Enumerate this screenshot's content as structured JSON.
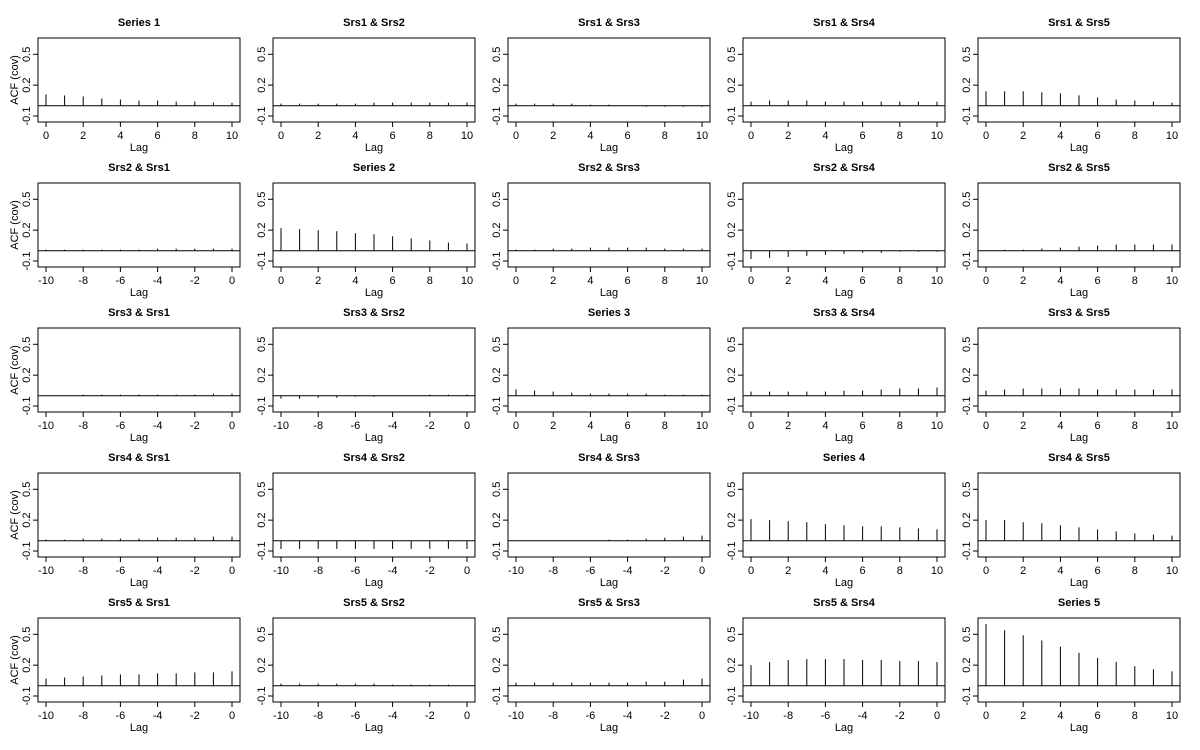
{
  "ylabel": "ACF (cov)",
  "xlabel": "Lag",
  "colors": {
    "axis": "#000000",
    "bars": "#000000",
    "background": "#ffffff"
  },
  "chart_data": [
    {
      "type": "bar",
      "title": "Series 1",
      "xlabel": "Lag",
      "ylabel": "ACF (cov)",
      "xlim": [
        0,
        10
      ],
      "ylim": [
        -0.1,
        0.6
      ],
      "yticks": [
        "-0.1",
        "0.2",
        "0.5"
      ],
      "xticks": [
        "0",
        "2",
        "4",
        "6",
        "8",
        "10"
      ],
      "x": [
        0,
        1,
        2,
        3,
        4,
        5,
        6,
        7,
        8,
        9,
        10
      ],
      "values": [
        0.11,
        0.1,
        0.09,
        0.07,
        0.06,
        0.05,
        0.05,
        0.04,
        0.04,
        0.03,
        0.03
      ]
    },
    {
      "type": "bar",
      "title": "Srs1 & Srs2",
      "xlabel": "Lag",
      "xlim": [
        0,
        10
      ],
      "ylim": [
        -0.1,
        0.6
      ],
      "yticks": [
        "-0.1",
        "0.2",
        "0.5"
      ],
      "xticks": [
        "0",
        "2",
        "4",
        "6",
        "8",
        "10"
      ],
      "x": [
        0,
        1,
        2,
        3,
        4,
        5,
        6,
        7,
        8,
        9,
        10
      ],
      "values": [
        0.02,
        0.02,
        0.02,
        0.02,
        0.02,
        0.03,
        0.03,
        0.03,
        0.03,
        0.03,
        0.03
      ]
    },
    {
      "type": "bar",
      "title": "Srs1 & Srs3",
      "xlabel": "Lag",
      "xlim": [
        0,
        10
      ],
      "ylim": [
        -0.1,
        0.6
      ],
      "yticks": [
        "-0.1",
        "0.2",
        "0.5"
      ],
      "xticks": [
        "0",
        "2",
        "4",
        "6",
        "8",
        "10"
      ],
      "x": [
        0,
        1,
        2,
        3,
        4,
        5,
        6,
        7,
        8,
        9,
        10
      ],
      "values": [
        0.02,
        0.02,
        0.02,
        0.02,
        0.01,
        0.01,
        0.0,
        -0.01,
        -0.01,
        -0.01,
        -0.01
      ]
    },
    {
      "type": "bar",
      "title": "Srs1 & Srs4",
      "xlabel": "Lag",
      "xlim": [
        0,
        10
      ],
      "ylim": [
        -0.1,
        0.6
      ],
      "yticks": [
        "-0.1",
        "0.2",
        "0.5"
      ],
      "xticks": [
        "0",
        "2",
        "4",
        "6",
        "8",
        "10"
      ],
      "x": [
        0,
        1,
        2,
        3,
        4,
        5,
        6,
        7,
        8,
        9,
        10
      ],
      "values": [
        0.04,
        0.05,
        0.05,
        0.05,
        0.04,
        0.04,
        0.04,
        0.04,
        0.04,
        0.04,
        0.04
      ]
    },
    {
      "type": "bar",
      "title": "Srs1 & Srs5",
      "xlabel": "Lag",
      "xlim": [
        0,
        10
      ],
      "ylim": [
        -0.1,
        0.6
      ],
      "yticks": [
        "-0.1",
        "0.2",
        "0.5"
      ],
      "xticks": [
        "0",
        "2",
        "4",
        "6",
        "8",
        "10"
      ],
      "x": [
        0,
        1,
        2,
        3,
        4,
        5,
        6,
        7,
        8,
        9,
        10
      ],
      "values": [
        0.14,
        0.14,
        0.14,
        0.13,
        0.12,
        0.1,
        0.08,
        0.06,
        0.05,
        0.04,
        0.03
      ]
    },
    {
      "type": "bar",
      "title": "Srs2 & Srs1",
      "xlabel": "Lag",
      "ylabel": "ACF (cov)",
      "xlim": [
        -10,
        0
      ],
      "ylim": [
        -0.1,
        0.6
      ],
      "yticks": [
        "-0.1",
        "0.2",
        "0.5"
      ],
      "xticks": [
        "-10",
        "-8",
        "-6",
        "-4",
        "-2",
        "0"
      ],
      "x": [
        -10,
        -9,
        -8,
        -7,
        -6,
        -5,
        -4,
        -3,
        -2,
        -1,
        0
      ],
      "values": [
        0.01,
        0.01,
        0.01,
        0.01,
        0.01,
        0.01,
        0.02,
        0.02,
        0.02,
        0.02,
        0.02
      ]
    },
    {
      "type": "bar",
      "title": "Series 2",
      "xlabel": "Lag",
      "xlim": [
        0,
        10
      ],
      "ylim": [
        -0.1,
        0.6
      ],
      "yticks": [
        "-0.1",
        "0.2",
        "0.5"
      ],
      "xticks": [
        "0",
        "2",
        "4",
        "6",
        "8",
        "10"
      ],
      "x": [
        0,
        1,
        2,
        3,
        4,
        5,
        6,
        7,
        8,
        9,
        10
      ],
      "values": [
        0.22,
        0.21,
        0.2,
        0.19,
        0.17,
        0.16,
        0.14,
        0.12,
        0.1,
        0.08,
        0.07
      ]
    },
    {
      "type": "bar",
      "title": "Srs2 & Srs3",
      "xlabel": "Lag",
      "xlim": [
        0,
        10
      ],
      "ylim": [
        -0.1,
        0.6
      ],
      "yticks": [
        "-0.1",
        "0.2",
        "0.5"
      ],
      "xticks": [
        "0",
        "2",
        "4",
        "6",
        "8",
        "10"
      ],
      "x": [
        0,
        1,
        2,
        3,
        4,
        5,
        6,
        7,
        8,
        9,
        10
      ],
      "values": [
        0.01,
        0.01,
        0.02,
        0.02,
        0.03,
        0.03,
        0.03,
        0.03,
        0.02,
        0.02,
        0.02
      ]
    },
    {
      "type": "bar",
      "title": "Srs2 & Srs4",
      "xlabel": "Lag",
      "xlim": [
        0,
        10
      ],
      "ylim": [
        -0.1,
        0.6
      ],
      "yticks": [
        "-0.1",
        "0.2",
        "0.5"
      ],
      "xticks": [
        "0",
        "2",
        "4",
        "6",
        "8",
        "10"
      ],
      "x": [
        0,
        1,
        2,
        3,
        4,
        5,
        6,
        7,
        8,
        9,
        10
      ],
      "values": [
        -0.08,
        -0.07,
        -0.06,
        -0.05,
        -0.04,
        -0.03,
        -0.02,
        -0.02,
        -0.01,
        -0.01,
        -0.01
      ]
    },
    {
      "type": "bar",
      "title": "Srs2 & Srs5",
      "xlabel": "Lag",
      "xlim": [
        0,
        10
      ],
      "ylim": [
        -0.1,
        0.6
      ],
      "yticks": [
        "-0.1",
        "0.2",
        "0.5"
      ],
      "xticks": [
        "0",
        "2",
        "4",
        "6",
        "8",
        "10"
      ],
      "x": [
        0,
        1,
        2,
        3,
        4,
        5,
        6,
        7,
        8,
        9,
        10
      ],
      "values": [
        0.0,
        0.01,
        0.01,
        0.02,
        0.03,
        0.04,
        0.05,
        0.06,
        0.06,
        0.06,
        0.06
      ]
    },
    {
      "type": "bar",
      "title": "Srs3 & Srs1",
      "xlabel": "Lag",
      "ylabel": "ACF (cov)",
      "xlim": [
        -10,
        0
      ],
      "ylim": [
        -0.1,
        0.6
      ],
      "yticks": [
        "-0.1",
        "0.2",
        "0.5"
      ],
      "xticks": [
        "-10",
        "-8",
        "-6",
        "-4",
        "-2",
        "0"
      ],
      "x": [
        -10,
        -9,
        -8,
        -7,
        -6,
        -5,
        -4,
        -3,
        -2,
        -1,
        0
      ],
      "values": [
        0.0,
        0.0,
        0.01,
        0.01,
        0.01,
        0.01,
        0.01,
        0.01,
        0.01,
        0.02,
        0.02
      ]
    },
    {
      "type": "bar",
      "title": "Srs3 & Srs2",
      "xlabel": "Lag",
      "xlim": [
        -10,
        0
      ],
      "ylim": [
        -0.1,
        0.6
      ],
      "yticks": [
        "-0.1",
        "0.2",
        "0.5"
      ],
      "xticks": [
        "-10",
        "-8",
        "-6",
        "-4",
        "-2",
        "0"
      ],
      "x": [
        -10,
        -9,
        -8,
        -7,
        -6,
        -5,
        -4,
        -3,
        -2,
        -1,
        0
      ],
      "values": [
        -0.03,
        -0.03,
        -0.02,
        -0.02,
        -0.01,
        -0.01,
        0.0,
        0.0,
        0.01,
        0.01,
        0.01
      ]
    },
    {
      "type": "bar",
      "title": "Series 3",
      "xlabel": "Lag",
      "xlim": [
        0,
        10
      ],
      "ylim": [
        -0.1,
        0.6
      ],
      "yticks": [
        "-0.1",
        "0.2",
        "0.5"
      ],
      "xticks": [
        "0",
        "2",
        "4",
        "6",
        "8",
        "10"
      ],
      "x": [
        0,
        1,
        2,
        3,
        4,
        5,
        6,
        7,
        8,
        9,
        10
      ],
      "values": [
        0.06,
        0.05,
        0.04,
        0.03,
        0.02,
        0.02,
        0.02,
        0.02,
        0.01,
        0.01,
        0.01
      ]
    },
    {
      "type": "bar",
      "title": "Srs3 & Srs4",
      "xlabel": "Lag",
      "xlim": [
        0,
        10
      ],
      "ylim": [
        -0.1,
        0.6
      ],
      "yticks": [
        "-0.1",
        "0.2",
        "0.5"
      ],
      "xticks": [
        "0",
        "2",
        "4",
        "6",
        "8",
        "10"
      ],
      "x": [
        0,
        1,
        2,
        3,
        4,
        5,
        6,
        7,
        8,
        9,
        10
      ],
      "values": [
        0.04,
        0.04,
        0.04,
        0.04,
        0.04,
        0.05,
        0.05,
        0.06,
        0.07,
        0.07,
        0.08
      ]
    },
    {
      "type": "bar",
      "title": "Srs3 & Srs5",
      "xlabel": "Lag",
      "xlim": [
        0,
        10
      ],
      "ylim": [
        -0.1,
        0.6
      ],
      "yticks": [
        "-0.1",
        "0.2",
        "0.5"
      ],
      "xticks": [
        "0",
        "2",
        "4",
        "6",
        "8",
        "10"
      ],
      "x": [
        0,
        1,
        2,
        3,
        4,
        5,
        6,
        7,
        8,
        9,
        10
      ],
      "values": [
        0.05,
        0.06,
        0.07,
        0.07,
        0.07,
        0.07,
        0.06,
        0.06,
        0.06,
        0.06,
        0.06
      ]
    },
    {
      "type": "bar",
      "title": "Srs4 & Srs1",
      "xlabel": "Lag",
      "ylabel": "ACF (cov)",
      "xlim": [
        -10,
        0
      ],
      "ylim": [
        -0.1,
        0.6
      ],
      "yticks": [
        "-0.1",
        "0.2",
        "0.5"
      ],
      "xticks": [
        "-10",
        "-8",
        "-6",
        "-4",
        "-2",
        "0"
      ],
      "x": [
        -10,
        -9,
        -8,
        -7,
        -6,
        -5,
        -4,
        -3,
        -2,
        -1,
        0
      ],
      "values": [
        0.01,
        0.01,
        0.02,
        0.02,
        0.02,
        0.02,
        0.03,
        0.03,
        0.03,
        0.04,
        0.04
      ]
    },
    {
      "type": "bar",
      "title": "Srs4 & Srs2",
      "xlabel": "Lag",
      "xlim": [
        -10,
        0
      ],
      "ylim": [
        -0.1,
        0.6
      ],
      "yticks": [
        "-0.1",
        "0.2",
        "0.5"
      ],
      "xticks": [
        "-10",
        "-8",
        "-6",
        "-4",
        "-2",
        "0"
      ],
      "x": [
        -10,
        -9,
        -8,
        -7,
        -6,
        -5,
        -4,
        -3,
        -2,
        -1,
        0
      ],
      "values": [
        -0.08,
        -0.08,
        -0.08,
        -0.08,
        -0.08,
        -0.08,
        -0.08,
        -0.08,
        -0.08,
        -0.08,
        -0.08
      ]
    },
    {
      "type": "bar",
      "title": "Srs4 & Srs3",
      "xlabel": "Lag",
      "xlim": [
        -10,
        0
      ],
      "ylim": [
        -0.1,
        0.6
      ],
      "yticks": [
        "-0.1",
        "0.2",
        "0.5"
      ],
      "xticks": [
        "-10",
        "-8",
        "-6",
        "-4",
        "-2",
        "0"
      ],
      "x": [
        -10,
        -9,
        -8,
        -7,
        -6,
        -5,
        -4,
        -3,
        -2,
        -1,
        0
      ],
      "values": [
        0.0,
        0.0,
        0.0,
        0.0,
        0.0,
        0.01,
        0.01,
        0.02,
        0.03,
        0.04,
        0.05
      ]
    },
    {
      "type": "bar",
      "title": "Series 4",
      "xlabel": "Lag",
      "xlim": [
        0,
        10
      ],
      "ylim": [
        -0.1,
        0.6
      ],
      "yticks": [
        "-0.1",
        "0.2",
        "0.5"
      ],
      "xticks": [
        "0",
        "2",
        "4",
        "6",
        "8",
        "10"
      ],
      "x": [
        0,
        1,
        2,
        3,
        4,
        5,
        6,
        7,
        8,
        9,
        10
      ],
      "values": [
        0.21,
        0.2,
        0.19,
        0.18,
        0.16,
        0.15,
        0.14,
        0.14,
        0.13,
        0.12,
        0.11
      ]
    },
    {
      "type": "bar",
      "title": "Srs4 & Srs5",
      "xlabel": "Lag",
      "xlim": [
        0,
        10
      ],
      "ylim": [
        -0.1,
        0.6
      ],
      "yticks": [
        "-0.1",
        "0.2",
        "0.5"
      ],
      "xticks": [
        "0",
        "2",
        "4",
        "6",
        "8",
        "10"
      ],
      "x": [
        0,
        1,
        2,
        3,
        4,
        5,
        6,
        7,
        8,
        9,
        10
      ],
      "values": [
        0.2,
        0.2,
        0.18,
        0.17,
        0.15,
        0.13,
        0.11,
        0.09,
        0.07,
        0.06,
        0.05
      ]
    },
    {
      "type": "bar",
      "title": "Srs5 & Srs1",
      "xlabel": "Lag",
      "ylabel": "ACF (cov)",
      "xlim": [
        -10,
        0
      ],
      "ylim": [
        -0.1,
        0.6
      ],
      "yticks": [
        "-0.1",
        "0.2",
        "0.5"
      ],
      "xticks": [
        "-10",
        "-8",
        "-6",
        "-4",
        "-2",
        "0"
      ],
      "x": [
        -10,
        -9,
        -8,
        -7,
        -6,
        -5,
        -4,
        -3,
        -2,
        -1,
        0
      ],
      "values": [
        0.07,
        0.08,
        0.09,
        0.1,
        0.11,
        0.11,
        0.12,
        0.12,
        0.13,
        0.13,
        0.14
      ]
    },
    {
      "type": "bar",
      "title": "Srs5 & Srs2",
      "xlabel": "Lag",
      "xlim": [
        -10,
        0
      ],
      "ylim": [
        -0.1,
        0.6
      ],
      "yticks": [
        "-0.1",
        "0.2",
        "0.5"
      ],
      "xticks": [
        "-10",
        "-8",
        "-6",
        "-4",
        "-2",
        "0"
      ],
      "x": [
        -10,
        -9,
        -8,
        -7,
        -6,
        -5,
        -4,
        -3,
        -2,
        -1,
        0
      ],
      "values": [
        0.02,
        0.02,
        0.02,
        0.02,
        0.02,
        0.02,
        0.01,
        0.01,
        0.01,
        0.01,
        0.0
      ]
    },
    {
      "type": "bar",
      "title": "Srs5 & Srs3",
      "xlabel": "Lag",
      "xlim": [
        -10,
        0
      ],
      "ylim": [
        -0.1,
        0.6
      ],
      "yticks": [
        "-0.1",
        "0.2",
        "0.5"
      ],
      "xticks": [
        "-10",
        "-8",
        "-6",
        "-4",
        "-2",
        "0"
      ],
      "x": [
        -10,
        -9,
        -8,
        -7,
        -6,
        -5,
        -4,
        -3,
        -2,
        -1,
        0
      ],
      "values": [
        0.03,
        0.03,
        0.03,
        0.03,
        0.03,
        0.03,
        0.03,
        0.04,
        0.04,
        0.06,
        0.07
      ]
    },
    {
      "type": "bar",
      "title": "Srs5 & Srs4",
      "xlabel": "Lag",
      "xlim": [
        -10,
        0
      ],
      "ylim": [
        -0.1,
        0.6
      ],
      "yticks": [
        "-0.1",
        "0.2",
        "0.5"
      ],
      "xticks": [
        "-10",
        "-8",
        "-6",
        "-4",
        "-2",
        "0"
      ],
      "x": [
        -10,
        -9,
        -8,
        -7,
        -6,
        -5,
        -4,
        -3,
        -2,
        -1,
        0
      ],
      "values": [
        0.2,
        0.23,
        0.25,
        0.26,
        0.26,
        0.26,
        0.25,
        0.25,
        0.24,
        0.24,
        0.23
      ]
    },
    {
      "type": "bar",
      "title": "Series 5",
      "xlabel": "Lag",
      "xlim": [
        0,
        10
      ],
      "ylim": [
        -0.1,
        0.6
      ],
      "yticks": [
        "-0.1",
        "0.2",
        "0.5"
      ],
      "xticks": [
        "0",
        "2",
        "4",
        "6",
        "8",
        "10"
      ],
      "x": [
        0,
        1,
        2,
        3,
        4,
        5,
        6,
        7,
        8,
        9,
        10
      ],
      "values": [
        0.6,
        0.54,
        0.49,
        0.44,
        0.38,
        0.32,
        0.27,
        0.23,
        0.19,
        0.16,
        0.14
      ]
    }
  ]
}
